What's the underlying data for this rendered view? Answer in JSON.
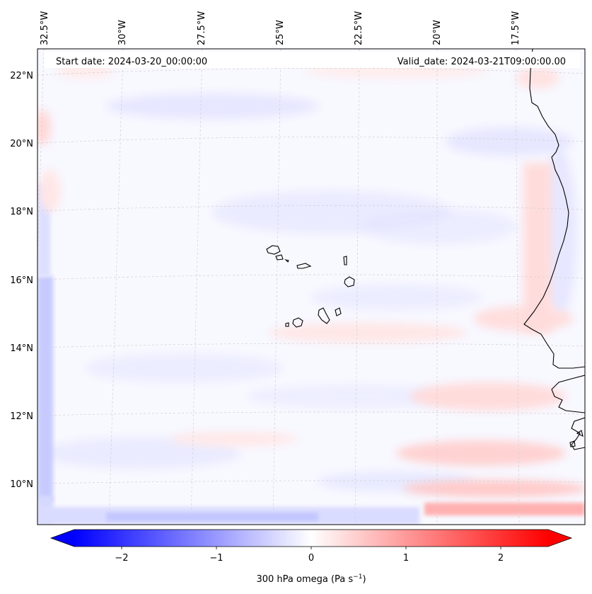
{
  "header": {
    "start_date": "Start date: 2024-03-20_00:00:00",
    "valid_date": "Valid_date: 2024-03-21T09:00:00.00"
  },
  "longitude_labels": [
    "32.5°W",
    "30°W",
    "27.5°W",
    "25°W",
    "22.5°W",
    "20°W",
    "17.5°W"
  ],
  "latitude_labels": [
    "22°N",
    "20°N",
    "18°N",
    "16°N",
    "14°N",
    "12°N",
    "10°N"
  ],
  "colorbar": {
    "label_prefix": "300 hPa omega (Pa s",
    "label_exponent": "−1",
    "label_suffix": ")",
    "ticks": [
      "−2",
      "−1",
      "0",
      "1",
      "2"
    ],
    "range": [
      -2.7,
      2.7
    ],
    "colormap": "bwr",
    "extend": "both"
  },
  "colors": {
    "negative": "#0000ff",
    "neutral": "#ffffff",
    "positive": "#ff0000",
    "coastline": "#000000",
    "gridline": "#c8c8c8"
  },
  "chart_data": {
    "type": "filled-contour-map",
    "field": "300 hPa omega",
    "units": "Pa s^-1",
    "domain": {
      "lon": [
        -33,
        -15
      ],
      "lat": [
        8.8,
        22.8
      ]
    },
    "gridlines_lon": [
      -32.5,
      -30,
      -27.5,
      -25,
      -22.5,
      -20,
      -17.5
    ],
    "gridlines_lat": [
      22,
      20,
      18,
      16,
      14,
      12,
      10
    ],
    "typical_value_range": [
      -0.8,
      1.2
    ]
  }
}
